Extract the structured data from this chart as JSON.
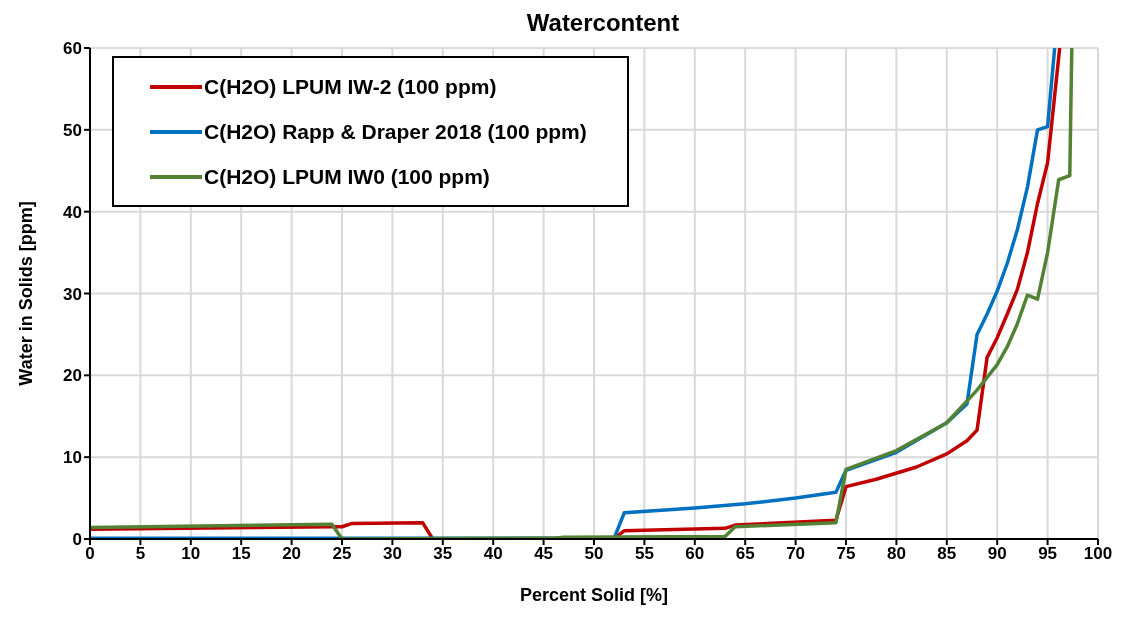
{
  "chart_data": {
    "type": "line",
    "title": "Watercontent",
    "xlabel": "Percent Solid [%]",
    "ylabel": "Water in Solids [ppm]",
    "xlim": [
      0,
      100
    ],
    "xticks": [
      0,
      5,
      10,
      15,
      20,
      25,
      30,
      35,
      40,
      45,
      50,
      55,
      60,
      65,
      70,
      75,
      80,
      85,
      90,
      95,
      100
    ],
    "ylim": [
      0,
      60
    ],
    "yticks": [
      0,
      10,
      20,
      30,
      40,
      50,
      60
    ],
    "grid": true,
    "legend": "top left",
    "marker": "none",
    "line_style": "solid",
    "series": [
      {
        "name": "C(H2O) LPUM IW-2 (100 ppm)",
        "color": "#c00000",
        "x": [
          0,
          24,
          25,
          26,
          33,
          34,
          52,
          53,
          63,
          64,
          74,
          75,
          78,
          82,
          85,
          87,
          88,
          89,
          90,
          91,
          92,
          93,
          94,
          95,
          96.2
        ],
        "values": [
          1.2,
          1.5,
          1.5,
          1.9,
          2.0,
          0,
          0.1,
          1.0,
          1.3,
          1.7,
          2.3,
          6.4,
          7.3,
          8.8,
          10.4,
          12,
          13.3,
          22.2,
          24.6,
          27.5,
          30.5,
          35,
          41,
          46,
          60
        ]
      },
      {
        "name": "C(H2O) Rapp & Draper 2018 (100 ppm)",
        "color": "#0070c0",
        "x": [
          0,
          52,
          53,
          60,
          65,
          70,
          74,
          75,
          80,
          85,
          87,
          88,
          89,
          90,
          91,
          92,
          93,
          94,
          95,
          95.7
        ],
        "values": [
          0.1,
          0.1,
          3.2,
          3.8,
          4.3,
          5.0,
          5.7,
          8.4,
          10.6,
          14.2,
          16.5,
          25,
          27.5,
          30.3,
          33.7,
          37.8,
          43,
          50,
          50.4,
          60
        ]
      },
      {
        "name": "C(H2O) LPUM IW0 (100 ppm)",
        "color": "#548235",
        "x": [
          0,
          24,
          25,
          46,
          47,
          63,
          64,
          74,
          75,
          80,
          85,
          88,
          90,
          91,
          92,
          93,
          94,
          95,
          96.1,
          97.2,
          97.4
        ],
        "values": [
          1.4,
          1.8,
          0,
          0.1,
          0.2,
          0.3,
          1.5,
          2.0,
          8.5,
          10.8,
          14.2,
          18.2,
          21.3,
          23.5,
          26.3,
          29.8,
          29.3,
          35,
          43.9,
          44.4,
          60
        ]
      }
    ]
  }
}
